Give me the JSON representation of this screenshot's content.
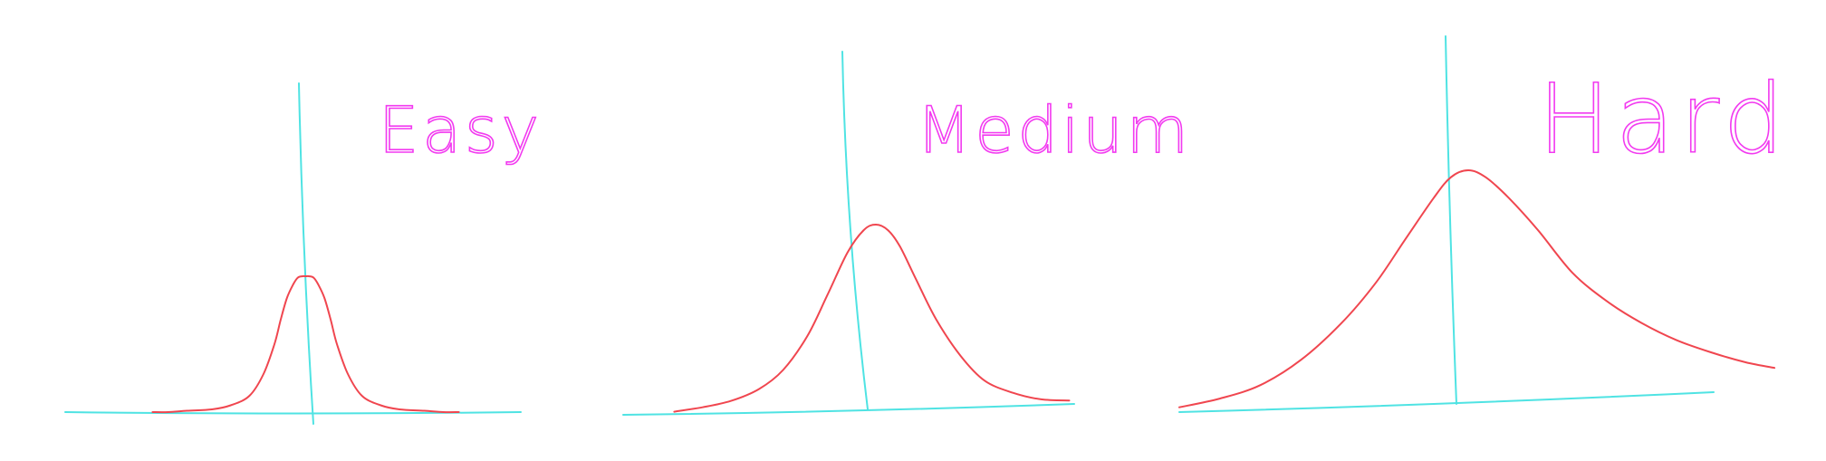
{
  "colors": {
    "axis": "#4fe3e3",
    "curve": "#f0464f",
    "title": "#f23af0"
  },
  "chart_data": [
    {
      "type": "line",
      "title": "Easy",
      "xlabel": "",
      "ylabel": "",
      "grid": false,
      "legend": "none",
      "xlim": [
        -5,
        5
      ],
      "ylim": [
        0,
        1
      ],
      "series": [
        {
          "x": [
            -4.9,
            -4.4,
            -3.8,
            -3.0,
            -2.4,
            -1.8,
            -1.35,
            -1.0,
            -0.8,
            -0.6,
            -0.4,
            -0.25,
            -0.1,
            0.0,
            0.1,
            0.25,
            0.4,
            0.6,
            0.8,
            1.0,
            1.35,
            1.8,
            2.4,
            3.0,
            3.8,
            4.4,
            4.9
          ],
          "values": [
            0.0,
            0.0,
            0.01,
            0.02,
            0.05,
            0.12,
            0.28,
            0.5,
            0.68,
            0.84,
            0.94,
            0.99,
            1.0,
            1.0,
            1.0,
            0.99,
            0.94,
            0.84,
            0.68,
            0.5,
            0.28,
            0.12,
            0.05,
            0.02,
            0.01,
            0.0,
            0.0
          ]
        }
      ]
    },
    {
      "type": "line",
      "title": "Medium",
      "xlabel": "",
      "ylabel": "",
      "grid": false,
      "legend": "none",
      "xlim": [
        -5,
        5
      ],
      "ylim": [
        0,
        1
      ],
      "series": [
        {
          "x": [
            -4.9,
            -4.2,
            -3.5,
            -2.8,
            -2.2,
            -1.6,
            -1.1,
            -0.6,
            -0.2,
            0.1,
            0.4,
            0.7,
            1.1,
            1.6,
            2.2,
            2.8,
            3.5,
            4.2,
            4.9
          ],
          "values": [
            0.01,
            0.03,
            0.06,
            0.12,
            0.22,
            0.4,
            0.62,
            0.85,
            0.97,
            1.0,
            0.97,
            0.88,
            0.7,
            0.48,
            0.28,
            0.14,
            0.07,
            0.03,
            0.02
          ]
        }
      ]
    },
    {
      "type": "line",
      "title": "Hard",
      "xlabel": "",
      "ylabel": "",
      "grid": false,
      "legend": "none",
      "xlim": [
        -5,
        5
      ],
      "ylim": [
        0,
        1
      ],
      "series": [
        {
          "x": [
            -5.0,
            -4.3,
            -3.6,
            -2.9,
            -2.2,
            -1.6,
            -1.1,
            -0.6,
            -0.3,
            0.0,
            0.3,
            0.7,
            1.2,
            1.8,
            2.4,
            3.0,
            3.6,
            4.2,
            4.8,
            5.3
          ],
          "values": [
            0.02,
            0.05,
            0.1,
            0.2,
            0.35,
            0.52,
            0.7,
            0.88,
            0.97,
            1.0,
            0.97,
            0.88,
            0.74,
            0.55,
            0.42,
            0.32,
            0.24,
            0.18,
            0.13,
            0.1
          ]
        }
      ]
    }
  ]
}
